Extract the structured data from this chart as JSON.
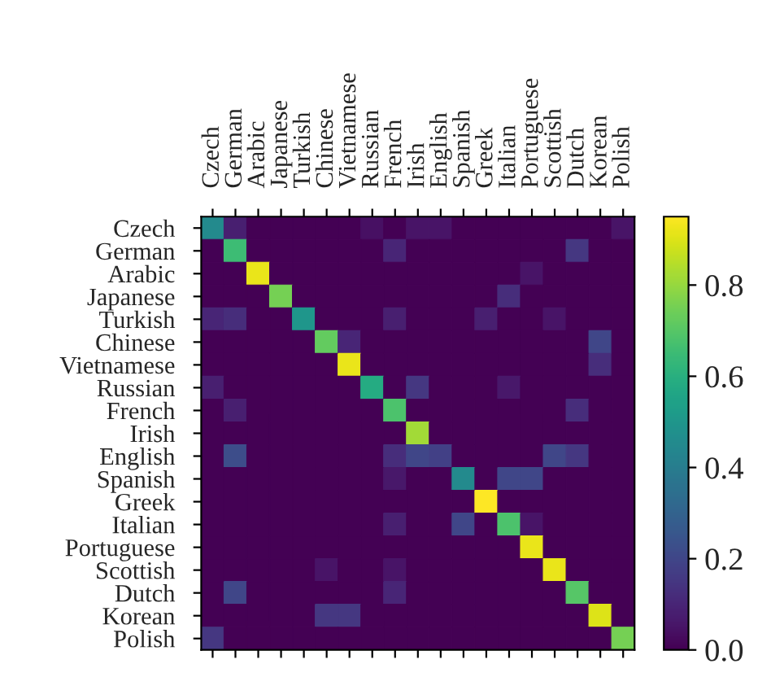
{
  "chart_data": {
    "type": "heatmap",
    "categories": [
      "Czech",
      "German",
      "Arabic",
      "Japanese",
      "Turkish",
      "Chinese",
      "Vietnamese",
      "Russian",
      "French",
      "Irish",
      "English",
      "Spanish",
      "Greek",
      "Italian",
      "Portuguese",
      "Scottish",
      "Dutch",
      "Korean",
      "Polish"
    ],
    "y_categories": [
      "Czech",
      "German",
      "Arabic",
      "Japanese",
      "Turkish",
      "Chinese",
      "Vietnamese",
      "Russian",
      "French",
      "Irish",
      "English",
      "Spanish",
      "Greek",
      "Italian",
      "Portuguese",
      "Scottish",
      "Dutch",
      "Korean",
      "Polish"
    ],
    "cells": [
      [
        0.45,
        0.08,
        0,
        0,
        0,
        0,
        0,
        0.04,
        0,
        0.05,
        0.05,
        0,
        0,
        0,
        0,
        0,
        0,
        0,
        0.05
      ],
      [
        0,
        0.65,
        0,
        0,
        0,
        0,
        0,
        0,
        0.1,
        0,
        0,
        0,
        0,
        0,
        0,
        0,
        0.15,
        0,
        0
      ],
      [
        0,
        0,
        0.92,
        0,
        0,
        0,
        0,
        0,
        0,
        0,
        0,
        0,
        0,
        0,
        0.05,
        0,
        0,
        0,
        0
      ],
      [
        0,
        0,
        0,
        0.75,
        0,
        0,
        0,
        0,
        0,
        0,
        0,
        0,
        0,
        0.12,
        0,
        0,
        0,
        0,
        0
      ],
      [
        0.1,
        0.12,
        0,
        0,
        0.5,
        0,
        0,
        0,
        0.08,
        0,
        0,
        0,
        0.08,
        0,
        0,
        0.05,
        0,
        0,
        0
      ],
      [
        0,
        0,
        0,
        0,
        0,
        0.72,
        0.1,
        0,
        0,
        0,
        0,
        0,
        0,
        0,
        0,
        0,
        0,
        0.2,
        0
      ],
      [
        0,
        0,
        0,
        0,
        0,
        0,
        0.92,
        0,
        0,
        0,
        0,
        0,
        0,
        0,
        0,
        0,
        0,
        0.12,
        0
      ],
      [
        0.08,
        0,
        0,
        0,
        0,
        0,
        0,
        0.58,
        0,
        0.15,
        0,
        0,
        0,
        0.06,
        0,
        0,
        0,
        0,
        0
      ],
      [
        0,
        0.08,
        0,
        0,
        0,
        0,
        0,
        0,
        0.68,
        0,
        0,
        0,
        0,
        0,
        0,
        0,
        0.12,
        0,
        0
      ],
      [
        0,
        0,
        0,
        0,
        0,
        0,
        0,
        0,
        0,
        0.82,
        0,
        0,
        0,
        0,
        0,
        0,
        0,
        0,
        0
      ],
      [
        0,
        0.22,
        0,
        0,
        0,
        0,
        0,
        0,
        0.12,
        0.2,
        0.18,
        0,
        0,
        0,
        0,
        0.2,
        0.15,
        0,
        0
      ],
      [
        0,
        0,
        0,
        0,
        0,
        0,
        0,
        0,
        0.06,
        0,
        0,
        0.45,
        0,
        0.2,
        0.2,
        0,
        0,
        0,
        0
      ],
      [
        0,
        0,
        0,
        0,
        0,
        0,
        0,
        0,
        0,
        0,
        0,
        0,
        0.95,
        0,
        0,
        0,
        0,
        0,
        0
      ],
      [
        0,
        0,
        0,
        0,
        0,
        0,
        0,
        0,
        0.08,
        0,
        0,
        0.2,
        0,
        0.68,
        0.05,
        0,
        0,
        0,
        0
      ],
      [
        0,
        0,
        0,
        0,
        0,
        0,
        0,
        0,
        0,
        0,
        0,
        0,
        0,
        0,
        0.92,
        0,
        0,
        0,
        0
      ],
      [
        0,
        0,
        0,
        0,
        0,
        0.05,
        0,
        0,
        0.05,
        0,
        0,
        0,
        0,
        0,
        0,
        0.92,
        0,
        0,
        0
      ],
      [
        0,
        0.2,
        0,
        0,
        0,
        0,
        0,
        0,
        0.1,
        0,
        0,
        0,
        0,
        0,
        0,
        0,
        0.7,
        0,
        0
      ],
      [
        0,
        0,
        0,
        0,
        0,
        0.15,
        0.15,
        0,
        0,
        0,
        0,
        0,
        0,
        0,
        0,
        0,
        0,
        0.9,
        0
      ],
      [
        0.15,
        0,
        0,
        0,
        0,
        0,
        0,
        0,
        0,
        0,
        0,
        0,
        0,
        0,
        0,
        0,
        0,
        0,
        0.75
      ]
    ],
    "clim": [
      0,
      0.95
    ],
    "cticks": [
      {
        "value": 0,
        "label": "0.0"
      },
      0.2,
      0.4,
      0.6,
      0.8
    ]
  }
}
